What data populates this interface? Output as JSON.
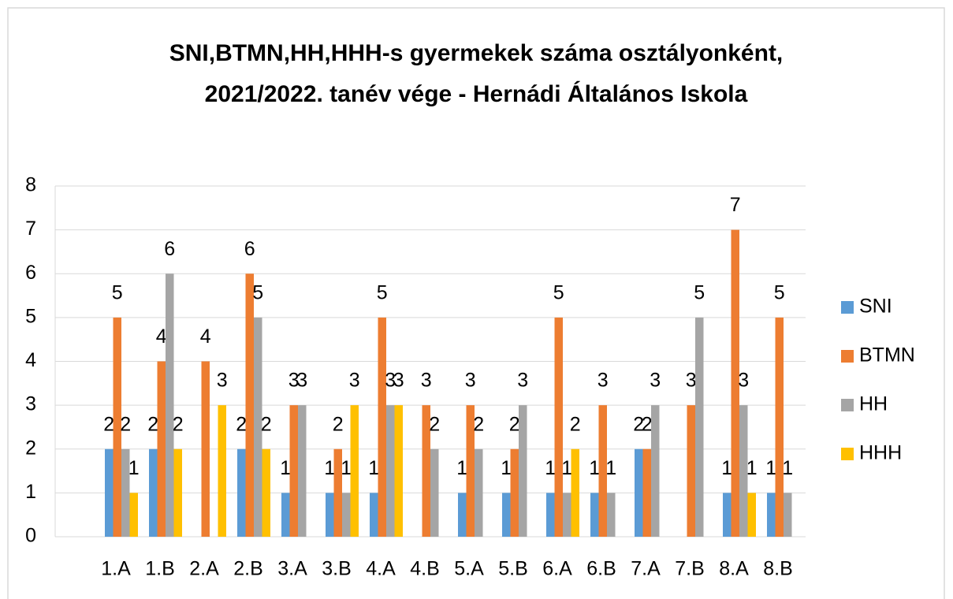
{
  "chart_data": {
    "type": "bar",
    "title": "SNI,BTMN,HH,HHH-s gyermekek száma osztályonként, 2021/2022. tanév vége - Hernádi Általános Iskola",
    "categories": [
      null,
      "1.A",
      "1.B",
      "2.A",
      "2.B",
      "3.A",
      "3.B",
      "4.A",
      "4.B",
      "5.A",
      "5.B",
      "6.A",
      "6.B",
      "7.A",
      "7.B",
      "8.A",
      "8.B"
    ],
    "series": [
      {
        "name": "SNI",
        "color": "#5b9bd5",
        "values": [
          null,
          2,
          2,
          null,
          2,
          1,
          1,
          1,
          null,
          1,
          1,
          1,
          1,
          2,
          null,
          1,
          1
        ]
      },
      {
        "name": "BTMN",
        "color": "#ed7d31",
        "values": [
          null,
          5,
          4,
          4,
          6,
          3,
          2,
          5,
          3,
          3,
          2,
          5,
          3,
          2,
          3,
          7,
          5
        ]
      },
      {
        "name": "HH",
        "color": "#a5a5a5",
        "values": [
          null,
          2,
          6,
          null,
          5,
          3,
          1,
          3,
          2,
          2,
          3,
          1,
          1,
          3,
          5,
          3,
          1
        ]
      },
      {
        "name": "HHH",
        "color": "#ffc000",
        "values": [
          null,
          1,
          2,
          3,
          2,
          null,
          3,
          3,
          null,
          null,
          null,
          2,
          null,
          null,
          null,
          1,
          null
        ]
      }
    ],
    "ylim": [
      0,
      8
    ],
    "yticks": [
      0,
      1,
      2,
      3,
      4,
      5,
      6,
      7,
      8
    ],
    "grid": true,
    "legend": "right"
  }
}
